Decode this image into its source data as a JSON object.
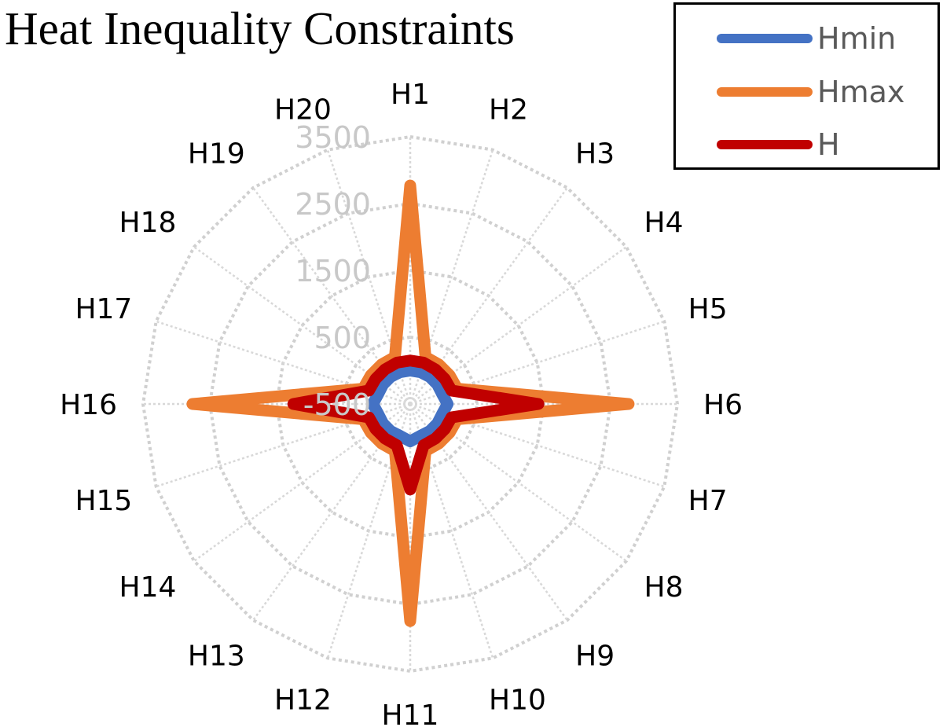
{
  "title": "Heat Inequality Constraints",
  "legend": {
    "items": [
      {
        "label": "Hmin",
        "color": "#4472c4"
      },
      {
        "label": "Hmax",
        "color": "#ed7d31"
      },
      {
        "label": "H",
        "color": "#c00000"
      }
    ]
  },
  "chart_data": {
    "type": "radar",
    "title": "Heat Inequality Constraints",
    "categories": [
      "H1",
      "H2",
      "H3",
      "H4",
      "H5",
      "H6",
      "H7",
      "H8",
      "H9",
      "H10",
      "H11",
      "H12",
      "H13",
      "H14",
      "H15",
      "H16",
      "H17",
      "H18",
      "H19",
      "H20"
    ],
    "series": [
      {
        "name": "Hmin",
        "color": "#4472c4",
        "values": [
          0,
          0,
          0,
          0,
          0,
          60,
          0,
          0,
          0,
          0,
          60,
          0,
          0,
          0,
          0,
          60,
          0,
          0,
          0,
          0
        ]
      },
      {
        "name": "Hmax",
        "color": "#ed7d31",
        "values": [
          2770,
          240,
          230,
          230,
          240,
          2770,
          240,
          230,
          230,
          240,
          2750,
          240,
          230,
          230,
          240,
          2760,
          240,
          230,
          230,
          240
        ]
      },
      {
        "name": "H",
        "color": "#c00000",
        "values": [
          150,
          150,
          140,
          140,
          150,
          1420,
          150,
          140,
          140,
          150,
          780,
          150,
          140,
          140,
          150,
          1250,
          150,
          140,
          140,
          150
        ]
      }
    ],
    "axis": {
      "min": -500,
      "max": 3500,
      "major_step": 1000,
      "tick_labels": [
        "-500",
        "500",
        "1500",
        "2500",
        "3500"
      ]
    },
    "grid": true,
    "legend_position": "top-right"
  }
}
